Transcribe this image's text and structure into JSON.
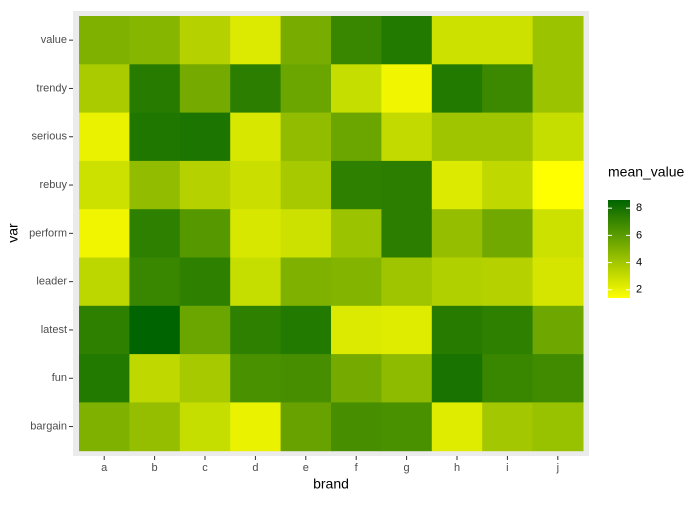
{
  "chart_data": {
    "type": "heatmap",
    "x_label": "brand",
    "y_label": "var",
    "x_categories": [
      "a",
      "b",
      "c",
      "d",
      "e",
      "f",
      "g",
      "h",
      "i",
      "j"
    ],
    "y_categories": [
      "value",
      "trendy",
      "serious",
      "rebuy",
      "perform",
      "leader",
      "latest",
      "fun",
      "bargain"
    ],
    "values": [
      [
        5.0,
        4.8,
        3.5,
        2.4,
        5.2,
        7.0,
        7.6,
        2.8,
        2.8,
        4.2
      ],
      [
        3.8,
        7.5,
        5.3,
        7.4,
        5.6,
        3.0,
        1.8,
        7.6,
        6.9,
        4.2
      ],
      [
        2.0,
        7.7,
        7.8,
        2.5,
        4.5,
        5.6,
        3.1,
        4.1,
        4.1,
        3.0
      ],
      [
        2.8,
        4.5,
        3.5,
        2.9,
        3.9,
        7.3,
        7.4,
        2.4,
        3.2,
        1.4
      ],
      [
        1.8,
        7.3,
        6.2,
        2.5,
        2.8,
        4.2,
        7.4,
        4.4,
        5.4,
        2.8
      ],
      [
        3.3,
        7.0,
        7.3,
        3.0,
        5.0,
        4.9,
        4.1,
        3.6,
        3.5,
        2.6
      ],
      [
        7.3,
        8.6,
        5.6,
        7.3,
        7.6,
        2.4,
        2.3,
        7.5,
        7.3,
        5.5
      ],
      [
        7.6,
        3.2,
        3.9,
        6.5,
        6.6,
        5.3,
        4.6,
        7.9,
        7.0,
        6.8
      ],
      [
        5.0,
        4.4,
        3.0,
        2.0,
        5.7,
        6.6,
        6.5,
        2.3,
        4.0,
        4.3
      ]
    ],
    "color_low": "#ffff00",
    "color_high": "#006400",
    "legend_title": "mean_value",
    "legend_ticks": [
      2,
      4,
      6,
      8
    ]
  }
}
